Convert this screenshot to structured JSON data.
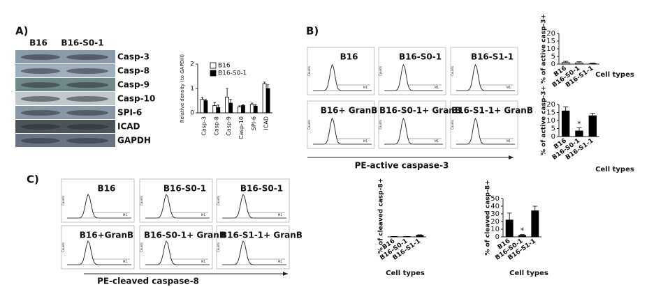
{
  "panel_labels": [
    "A)",
    "B)",
    "C)"
  ],
  "blot": {
    "columns": [
      "B16",
      "B16-S0-1"
    ],
    "rows": [
      "Casp-3",
      "Casp-8",
      "Casp-9",
      "Casp-10",
      "SPI-6",
      "ICAD",
      "GAPDH"
    ]
  },
  "flow_b": {
    "panels": [
      "B16",
      "B16-S0-1",
      "B16-S1-1",
      "B16+ GranB",
      "B16-S0-1+ GranB",
      "B16-S1-1+ GranB"
    ],
    "x_label": "PE-active caspase-3",
    "y_label": "Counts",
    "gate_label": "M1"
  },
  "flow_c": {
    "panels": [
      "B16",
      "B16-S0-1",
      "B16-S0-1",
      "B16+GranB",
      "B16-S0-1+ GranB",
      "B16-S1-1+ GranB"
    ],
    "x_label": "PE-cleaved caspase-8",
    "y_label": "Counts",
    "gate_label": "M1"
  },
  "chart_data": [
    {
      "type": "bar",
      "y_label": "Relative density (to GAPDH)",
      "categories": [
        "Casp-3",
        "Casp-8",
        "Casp-9",
        "Casp-10",
        "SPI-6",
        "ICAD"
      ],
      "series": [
        {
          "name": "B16",
          "color": "#ffffff",
          "values": [
            0.55,
            0.3,
            0.65,
            0.25,
            0.35,
            1.2
          ],
          "errors": [
            0.08,
            0.12,
            0.35,
            0.04,
            0.05,
            0.06
          ]
        },
        {
          "name": "B16-S0-1",
          "color": "#000000",
          "values": [
            0.5,
            0.22,
            0.4,
            0.3,
            0.28,
            1.0
          ],
          "errors": [
            0.05,
            0.1,
            0.15,
            0.03,
            0.05,
            0.15
          ]
        }
      ],
      "ylim": [
        0,
        2
      ],
      "yticks": [
        0,
        1,
        2
      ]
    },
    {
      "type": "bar",
      "y_label": "% of active casp-3+",
      "x_label": "Cell types",
      "categories": [
        "B16",
        "B16-S0-1",
        "B16-S1-1"
      ],
      "values": [
        1,
        0.8,
        0.3
      ],
      "errors": [
        0.8,
        0.7,
        0.3
      ],
      "color": "#cccccc",
      "ylim": [
        0,
        20
      ],
      "yticks": [
        0,
        5,
        10,
        15,
        20
      ]
    },
    {
      "type": "bar",
      "y_label": "% of active casp-3+",
      "x_label": "Cell types",
      "categories": [
        "B16",
        "B16-S0-1",
        "B16-S1-1"
      ],
      "values": [
        16,
        3.5,
        13
      ],
      "errors": [
        2.5,
        2,
        1.5
      ],
      "color": "#000000",
      "annotations": [
        {
          "category": "B16-S0-1",
          "text": "*"
        }
      ],
      "ylim": [
        0,
        20
      ],
      "yticks": [
        0,
        5,
        10,
        15,
        20
      ]
    },
    {
      "type": "bar",
      "y_label": "% of cleaved casp-8+",
      "x_label": "Cell types",
      "categories": [
        "B16",
        "B16-S0-1",
        "B16-S1-1"
      ],
      "values": [
        0.3,
        0.3,
        1.5
      ],
      "errors": [
        0.1,
        0.1,
        0.5
      ],
      "color": "#000000",
      "ylim": [
        0,
        40
      ]
    },
    {
      "type": "bar",
      "y_label": "% of cleaved casp-8+",
      "x_label": "Cell types",
      "categories": [
        "B16",
        "B16-S0-1",
        "B16-S1-1"
      ],
      "values": [
        22,
        2,
        34
      ],
      "errors": [
        9,
        1,
        6
      ],
      "color": "#000000",
      "annotations": [
        {
          "category": "B16-S0-1",
          "text": "*"
        }
      ],
      "ylim": [
        0,
        50
      ],
      "yticks": [
        0,
        10,
        20,
        30,
        40,
        50
      ]
    }
  ]
}
